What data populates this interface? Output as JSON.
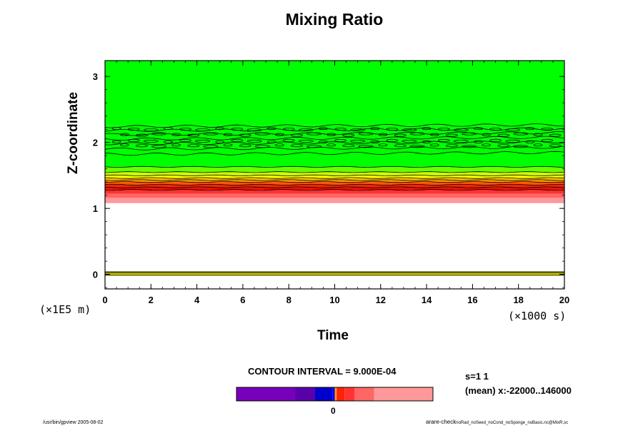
{
  "chart_data": {
    "type": "heatmap",
    "title": "Mixing Ratio",
    "xlabel": "Time",
    "ylabel": "Z-coordinate",
    "x_unit": "(×1000 s)",
    "y_unit": "(×1E5 m)",
    "xlim": [
      0,
      20
    ],
    "ylim": [
      -0.22,
      3.24
    ],
    "x_ticks": [
      "0",
      "2",
      "4",
      "6",
      "8",
      "10",
      "12",
      "14",
      "16",
      "18",
      "20"
    ],
    "y_ticks": [
      "0",
      "1",
      "2",
      "3"
    ],
    "bands": [
      {
        "z0": 2.26,
        "z1": 3.24,
        "color": "#00ff00"
      },
      {
        "z0": 1.63,
        "z1": 2.26,
        "color": "#00ff00"
      },
      {
        "z0": 1.55,
        "z1": 1.63,
        "color": "#66ff00"
      },
      {
        "z0": 1.5,
        "z1": 1.55,
        "color": "#ccff00"
      },
      {
        "z0": 1.46,
        "z1": 1.5,
        "color": "#ffff00"
      },
      {
        "z0": 1.43,
        "z1": 1.46,
        "color": "#ffcc00"
      },
      {
        "z0": 1.4,
        "z1": 1.43,
        "color": "#ff9900"
      },
      {
        "z0": 1.36,
        "z1": 1.4,
        "color": "#ff5500"
      },
      {
        "z0": 1.32,
        "z1": 1.36,
        "color": "#ff2200"
      },
      {
        "z0": 1.28,
        "z1": 1.32,
        "color": "#ee1100"
      },
      {
        "z0": 1.22,
        "z1": 1.28,
        "color": "#ff3333"
      },
      {
        "z0": 1.16,
        "z1": 1.22,
        "color": "#ff6666"
      },
      {
        "z0": 1.08,
        "z1": 1.16,
        "color": "#ff9999"
      },
      {
        "z0": -0.02,
        "z1": 0.04,
        "color": "#ffff00"
      }
    ],
    "contour_levels_z": [
      2.24,
      2.18,
      2.12,
      2.05,
      1.98,
      1.9,
      1.82,
      1.63,
      1.55,
      1.5,
      1.46,
      1.43,
      1.4,
      1.36,
      1.32,
      1.28
    ],
    "contour_interval": "CONTOUR INTERVAL = 9.000E-04",
    "colorbar": {
      "segments": [
        {
          "from": 0,
          "to": 0.3,
          "color": "#7700bb"
        },
        {
          "from": 0.3,
          "to": 0.4,
          "color": "#5a00aa"
        },
        {
          "from": 0.4,
          "to": 0.49,
          "color": "#0000cc"
        },
        {
          "from": 0.49,
          "to": 0.5,
          "color": "#0000ff"
        },
        {
          "from": 0.5,
          "to": 0.51,
          "color": "#ff9900"
        },
        {
          "from": 0.51,
          "to": 0.55,
          "color": "#ff2200"
        },
        {
          "from": 0.55,
          "to": 0.6,
          "color": "#ff3333"
        },
        {
          "from": 0.6,
          "to": 0.7,
          "color": "#ff6666"
        },
        {
          "from": 0.7,
          "to": 1.0,
          "color": "#ff9999"
        }
      ],
      "zero_label": "0"
    }
  },
  "stats": {
    "line1": "s=1 1",
    "line2": "(mean) x:-22000..146000"
  },
  "footer": {
    "left": "/usr/bin/gpview 2005-08-02",
    "right_main": "arare-check",
    "right_sub": "noRad_noSeed_noCond_noSponge_noBasic.nc@MixR,sc"
  }
}
